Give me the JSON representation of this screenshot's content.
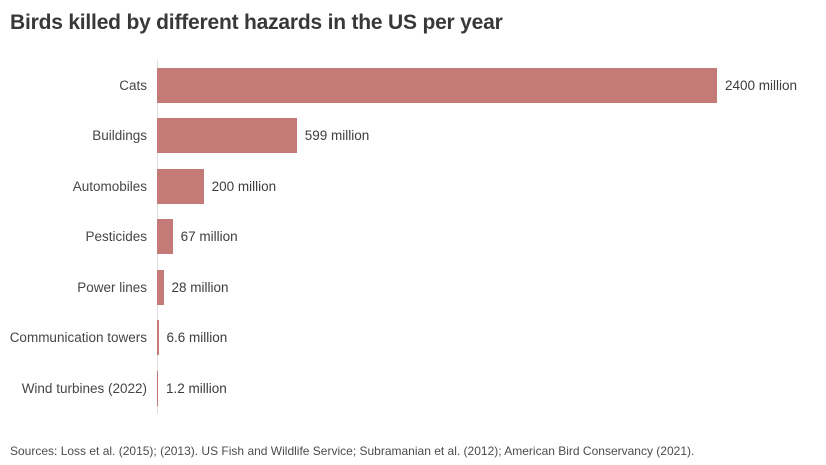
{
  "title": "Birds killed by different hazards in the US per year",
  "footer": {
    "sources": "Sources: Loss et al. (2015); (2013). US Fish and Wildlife Service; Subramanian et al. (2012); American Bird Conservancy (2021)."
  },
  "chart_data": {
    "type": "bar",
    "orientation": "horizontal",
    "title": "Birds killed by different hazards in the US per year",
    "categories": [
      "Cats",
      "Buildings",
      "Automobiles",
      "Pesticides",
      "Power lines",
      "Communication towers",
      "Wind turbines (2022)"
    ],
    "values": [
      2400,
      599,
      200,
      67,
      28,
      6.6,
      1.2
    ],
    "value_labels": [
      "2400 million",
      "599 million",
      "200 million",
      "67 million",
      "28 million",
      "6.6 million",
      "1.2 million"
    ],
    "unit": "million",
    "xlabel": "",
    "ylabel": "",
    "xlim": [
      0,
      2400
    ],
    "grid": false,
    "legend_position": "none",
    "bar_color": "#c47a76",
    "axis_line_color": "#dedede"
  }
}
